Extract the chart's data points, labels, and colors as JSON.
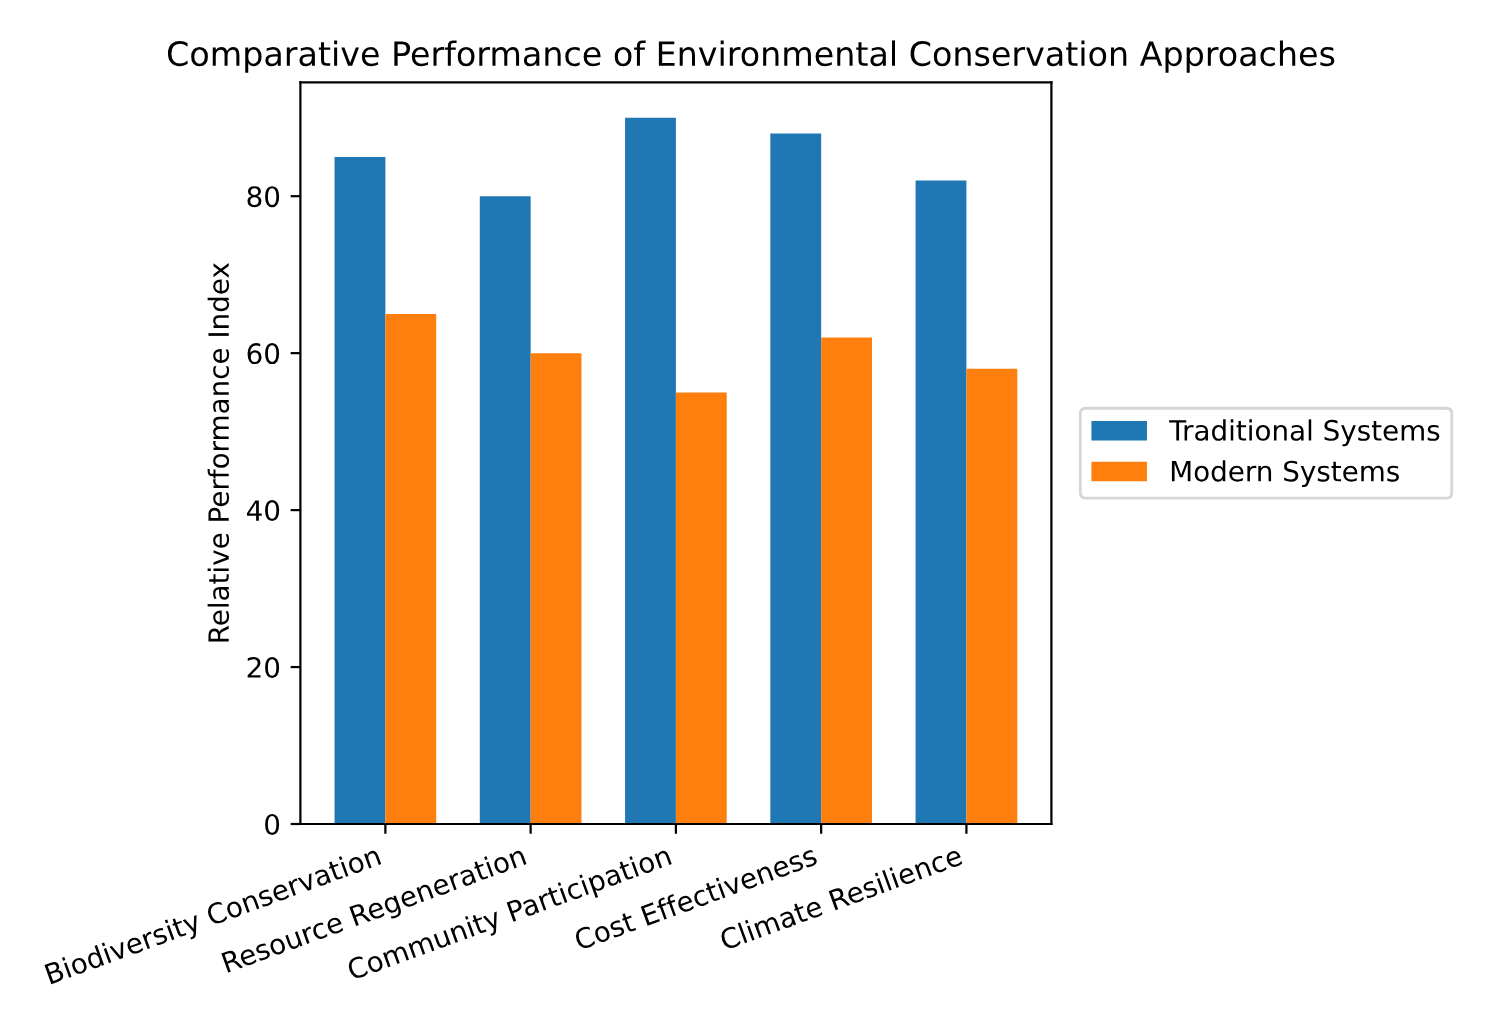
{
  "chart_data": {
    "type": "bar",
    "title": "Comparative Performance of Environmental Conservation Approaches",
    "ylabel": "Relative Performance Index",
    "categories": [
      "Biodiversity Conservation",
      "Resource Regeneration",
      "Community Participation",
      "Cost Effectiveness",
      "Climate Resilience"
    ],
    "series": [
      {
        "name": "Traditional Systems",
        "color": "#1f77b4",
        "values": [
          85,
          80,
          90,
          88,
          82
        ]
      },
      {
        "name": "Modern Systems",
        "color": "#ff7f0e",
        "values": [
          65,
          60,
          55,
          62,
          58
        ]
      }
    ],
    "ylim": [
      0,
      94.5
    ],
    "yticks": [
      0,
      20,
      40,
      60,
      80
    ],
    "grid": false,
    "legend": "right"
  }
}
